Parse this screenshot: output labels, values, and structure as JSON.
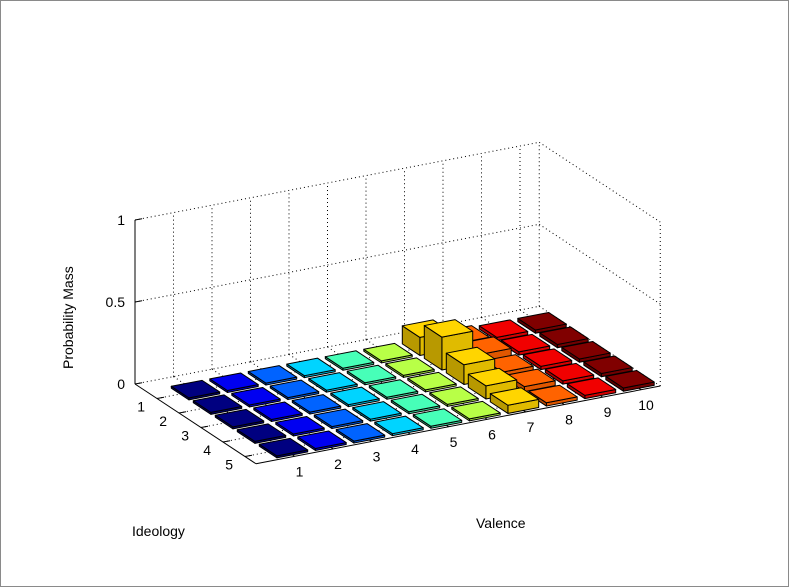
{
  "chart_data": {
    "type": "bar3",
    "xlabel": "Valence",
    "ylabel": "Ideology",
    "zlabel": "Probability Mass",
    "x_ticks": [
      "1",
      "2",
      "3",
      "4",
      "5",
      "6",
      "7",
      "8",
      "9",
      "10"
    ],
    "y_ticks": [
      "1",
      "2",
      "3",
      "4",
      "5"
    ],
    "z_ticks": [
      "0",
      "0.5",
      "1"
    ],
    "zlim": [
      0,
      1
    ],
    "grid": true,
    "colormap": "jet",
    "values": [
      [
        0.0,
        0.0,
        0.0,
        0.0,
        0.0,
        0.0,
        0.11,
        0.03,
        0.02,
        0.02
      ],
      [
        0.0,
        0.0,
        0.0,
        0.0,
        0.0,
        0.0,
        0.2,
        0.05,
        0.02,
        0.02
      ],
      [
        0.0,
        0.0,
        0.0,
        0.0,
        0.0,
        0.0,
        0.12,
        0.03,
        0.02,
        0.02
      ],
      [
        0.0,
        0.0,
        0.0,
        0.0,
        0.0,
        0.0,
        0.08,
        0.03,
        0.02,
        0.02
      ],
      [
        0.0,
        0.0,
        0.0,
        0.0,
        0.0,
        0.0,
        0.05,
        0.02,
        0.02,
        0.02
      ]
    ]
  }
}
